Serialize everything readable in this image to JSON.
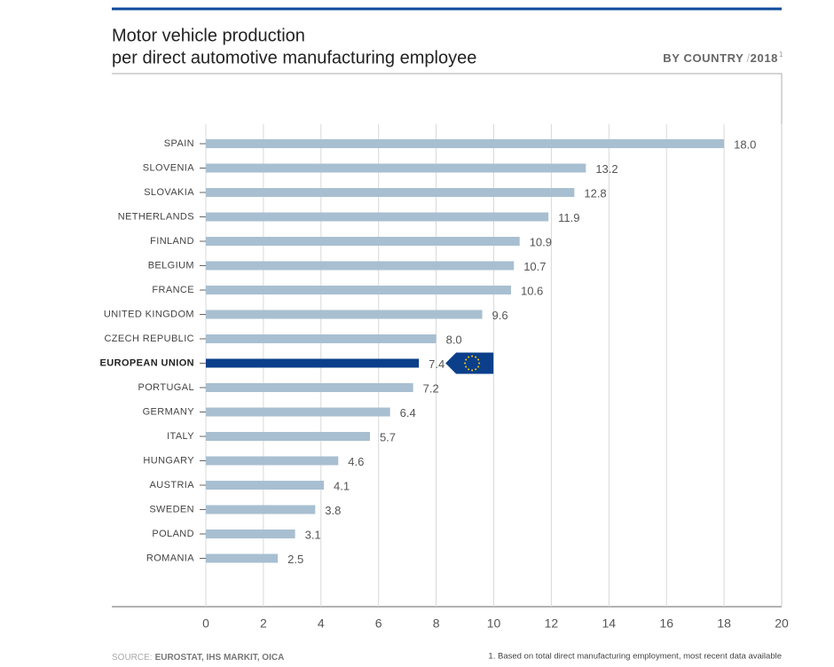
{
  "chart_data": {
    "type": "bar",
    "orientation": "horizontal",
    "title": [
      "Motor vehicle production",
      "per direct automotive manufacturing employee"
    ],
    "subtitle": [
      "BY COUNTRY",
      "/",
      "2018"
    ],
    "footnote_mark": "1",
    "categories": [
      "SPAIN",
      "SLOVENIA",
      "SLOVAKIA",
      "NETHERLANDS",
      "FINLAND",
      "BELGIUM",
      "FRANCE",
      "UNITED KINGDOM",
      "CZECH REPUBLIC",
      "EUROPEAN UNION",
      "PORTUGAL",
      "GERMANY",
      "ITALY",
      "HUNGARY",
      "AUSTRIA",
      "SWEDEN",
      "POLAND",
      "ROMANIA"
    ],
    "values": [
      18.0,
      13.2,
      12.8,
      11.9,
      10.9,
      10.7,
      10.6,
      9.6,
      8.0,
      7.4,
      7.2,
      6.4,
      5.7,
      4.6,
      4.1,
      3.8,
      3.1,
      2.5
    ],
    "value_labels": [
      "18.0",
      "13.2",
      "12.8",
      "11.9",
      "10.9",
      "10.7",
      "10.6",
      "9.6",
      "8.0",
      "7.4",
      "7.2",
      "6.4",
      "5.7",
      "4.6",
      "4.1",
      "3.8",
      "3.1",
      "2.5"
    ],
    "color": "#a8bfd1",
    "colors": [
      "#a8bfd1",
      "#a8bfd1",
      "#a8bfd1",
      "#a8bfd1",
      "#a8bfd1",
      "#a8bfd1",
      "#a8bfd1",
      "#a8bfd1",
      "#a8bfd1",
      "#0b3f8a",
      "#a8bfd1",
      "#a8bfd1",
      "#a8bfd1",
      "#a8bfd1",
      "#a8bfd1",
      "#a8bfd1",
      "#a8bfd1",
      "#a8bfd1"
    ],
    "xlim": [
      0,
      20
    ],
    "xticks": [
      0,
      2,
      4,
      6,
      8,
      10,
      12,
      14,
      16,
      18,
      20
    ],
    "grid": true,
    "source_label": "SOURCE:",
    "source": "EUROSTAT, IHS MARKIT, OICA",
    "footnote": "1. Based on total direct manufacturing employment, most recent data available"
  }
}
